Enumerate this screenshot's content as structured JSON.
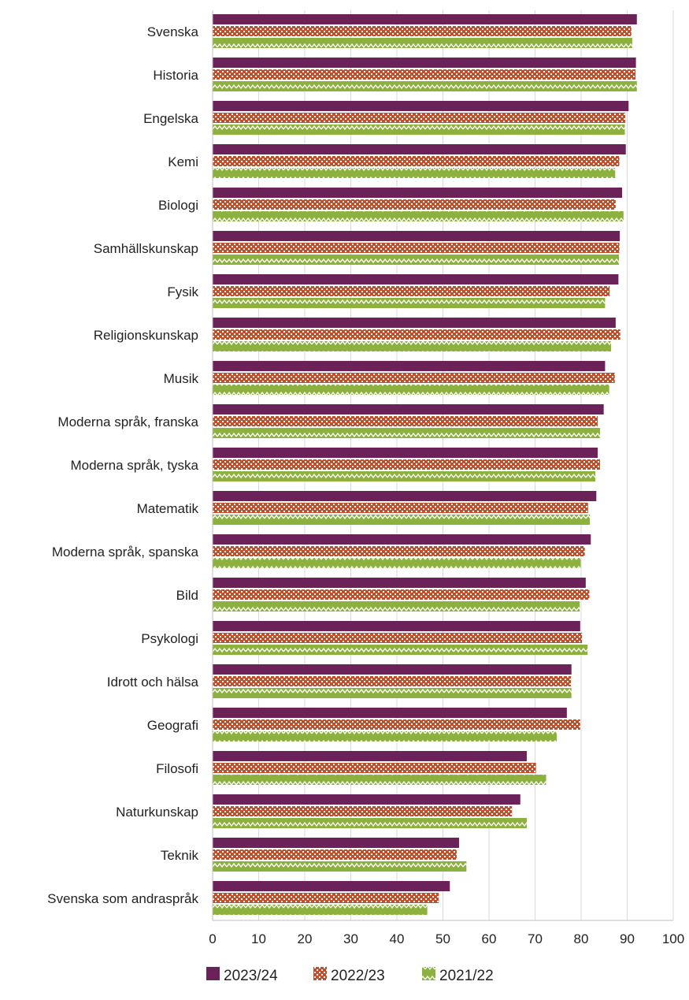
{
  "colors": {
    "series_2023_24": "#6b2258",
    "series_2022_23": "#c0502b",
    "series_2021_22": "#8db13f",
    "grid": "#d9d9d9",
    "axis": "#bfbfbf"
  },
  "chart_data": {
    "type": "bar",
    "orientation": "horizontal",
    "title": "",
    "xlabel": "",
    "ylabel": "",
    "xlim": [
      0,
      100
    ],
    "x_ticks": [
      "0",
      "10",
      "20",
      "30",
      "40",
      "50",
      "60",
      "70",
      "80",
      "90",
      "100"
    ],
    "grid": true,
    "legend_position": "bottom",
    "categories": [
      "Svenska",
      "Historia",
      "Engelska",
      "Kemi",
      "Biologi",
      "Samhällskunskap",
      "Fysik",
      "Religionskunskap",
      "Musik",
      "Moderna språk, franska",
      "Moderna språk, tyska",
      "Matematik",
      "Moderna språk, spanska",
      "Bild",
      "Psykologi",
      "Idrott och hälsa",
      "Geografi",
      "Filosofi",
      "Naturkunskap",
      "Teknik",
      "Svenska som andraspråk"
    ],
    "series": [
      {
        "name": "2023/24",
        "pattern": "solid",
        "values": [
          92.1,
          91.9,
          90.3,
          89.7,
          88.9,
          88.4,
          88.1,
          87.5,
          85.2,
          84.9,
          83.6,
          83.3,
          82.1,
          81.0,
          79.8,
          77.9,
          76.9,
          68.2,
          66.8,
          53.5,
          51.5
        ]
      },
      {
        "name": "2022/23",
        "pattern": "checker",
        "values": [
          90.9,
          91.8,
          89.6,
          88.3,
          87.5,
          88.3,
          86.2,
          88.5,
          87.3,
          83.6,
          84.1,
          81.5,
          80.8,
          81.8,
          80.2,
          77.8,
          79.8,
          70.2,
          65.0,
          53.0,
          49.1
        ]
      },
      {
        "name": "2021/22",
        "pattern": "zigzag",
        "values": [
          91.1,
          92.1,
          89.5,
          87.4,
          89.2,
          88.2,
          85.2,
          86.5,
          86.1,
          84.1,
          83.1,
          81.9,
          79.9,
          79.7,
          81.4,
          77.9,
          74.7,
          72.4,
          68.2,
          55.1,
          46.6
        ]
      }
    ]
  }
}
